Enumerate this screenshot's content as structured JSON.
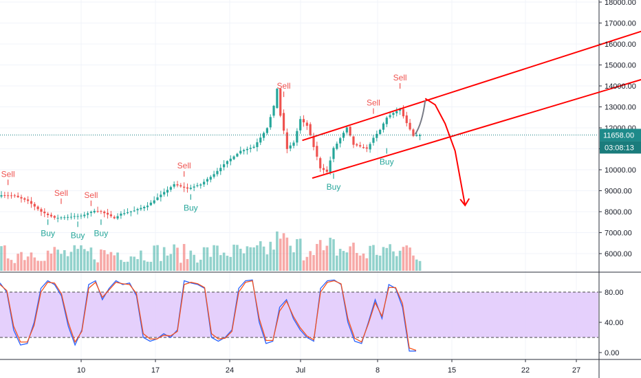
{
  "chart_data": [
    {
      "type": "candlestick",
      "ylim": [
        5200,
        18000
      ],
      "y_ticks": [
        6000,
        7000,
        8000,
        9000,
        10000,
        11000,
        12000,
        13000,
        14000,
        15000,
        16000,
        17000,
        18000
      ],
      "y_tick_labels": [
        "6000.00",
        "7000.00",
        "8000.00",
        "9000.00",
        "10000.00",
        "11000.00",
        "12000.00",
        "13000.00",
        "14000.00",
        "15000.00",
        "16000.00",
        "17000.00",
        "18000.00"
      ],
      "x_ticks": [
        "10",
        "17",
        "24",
        "Jul",
        "8",
        "15",
        "22",
        "27"
      ],
      "current_price": 11658.0,
      "current_price_label": "11658.00",
      "countdown_label": "03:08:13",
      "close_path": [
        [
          0,
          8800
        ],
        [
          4,
          8750
        ],
        [
          8,
          8500
        ],
        [
          12,
          8000
        ],
        [
          16,
          7700
        ],
        [
          20,
          7750
        ],
        [
          24,
          7800
        ],
        [
          28,
          8050
        ],
        [
          30,
          8000
        ],
        [
          34,
          7700
        ],
        [
          36,
          7900
        ],
        [
          40,
          8050
        ],
        [
          44,
          8300
        ],
        [
          48,
          8800
        ],
        [
          52,
          9300
        ],
        [
          56,
          9100
        ],
        [
          60,
          9300
        ],
        [
          64,
          9800
        ],
        [
          68,
          10400
        ],
        [
          72,
          10900
        ],
        [
          76,
          11100
        ],
        [
          80,
          12000
        ],
        [
          82,
          13000
        ],
        [
          83,
          13900
        ],
        [
          84,
          12600
        ],
        [
          86,
          11000
        ],
        [
          88,
          11300
        ],
        [
          90,
          12400
        ],
        [
          92,
          12100
        ],
        [
          94,
          11100
        ],
        [
          96,
          10100
        ],
        [
          98,
          9900
        ],
        [
          100,
          11000
        ],
        [
          102,
          11500
        ],
        [
          104,
          12000
        ],
        [
          106,
          11200
        ],
        [
          108,
          11100
        ],
        [
          110,
          11000
        ],
        [
          112,
          11500
        ],
        [
          114,
          11900
        ],
        [
          116,
          12500
        ],
        [
          118,
          12700
        ],
        [
          120,
          12900
        ],
        [
          122,
          12200
        ],
        [
          124,
          11600
        ],
        [
          126,
          11658
        ]
      ],
      "signals": [
        {
          "type": "Sell",
          "label": "Sell",
          "x": 2,
          "price": 9400
        },
        {
          "type": "Sell",
          "label": "Sell",
          "x": 18,
          "price": 8500
        },
        {
          "type": "Sell",
          "label": "Sell",
          "x": 27,
          "price": 8400
        },
        {
          "type": "Sell",
          "label": "Sell",
          "x": 55,
          "price": 9800
        },
        {
          "type": "Sell",
          "label": "Sell",
          "x": 85,
          "price": 13600
        },
        {
          "type": "Sell",
          "label": "Sell",
          "x": 112,
          "price": 12800
        },
        {
          "type": "Sell",
          "label": "Sell",
          "x": 120,
          "price": 14000
        },
        {
          "type": "Buy",
          "label": "Buy",
          "x": 14,
          "price": 7500
        },
        {
          "type": "Buy",
          "label": "Buy",
          "x": 23,
          "price": 7400
        },
        {
          "type": "Buy",
          "label": "Buy",
          "x": 30,
          "price": 7500
        },
        {
          "type": "Buy",
          "label": "Buy",
          "x": 57,
          "price": 8700
        },
        {
          "type": "Buy",
          "label": "Buy",
          "x": 100,
          "price": 9700
        },
        {
          "type": "Buy",
          "label": "Buy",
          "x": 116,
          "price": 10900
        }
      ],
      "channel": {
        "upper": [
          [
            91,
            11400
          ],
          [
            193,
            16600
          ]
        ],
        "lower": [
          [
            94,
            9600
          ],
          [
            193,
            14300
          ]
        ]
      },
      "projection": {
        "grey": [
          [
            125,
            11700
          ],
          [
            128,
            13300
          ]
        ],
        "red": [
          [
            128,
            13400
          ],
          [
            131,
            13100
          ],
          [
            134,
            12200
          ],
          [
            137,
            10900
          ],
          [
            140,
            8300
          ]
        ]
      },
      "colors": {
        "up": "#26a69a",
        "down": "#ef5350",
        "sell": "#ef5350",
        "buy": "#26a69a",
        "channel": "#ff0000",
        "projection": "#ff0000",
        "projection_grey": "#787b86",
        "price_line": "#0f7b7f",
        "price_tag": "#1e8a8a",
        "countdown_tag": "#1a7c7c"
      }
    },
    {
      "type": "line",
      "name": "stochastic",
      "ylim": [
        -5,
        105
      ],
      "y_ticks": [
        0,
        40,
        80
      ],
      "y_tick_labels": [
        "0.00",
        "40.00",
        "80.00"
      ],
      "band": [
        20,
        80
      ],
      "series": [
        {
          "values": [
            92,
            80,
            30,
            10,
            12,
            40,
            85,
            95,
            90,
            75,
            35,
            10,
            30,
            90,
            95,
            70,
            85,
            95,
            90,
            92,
            75,
            20,
            15,
            18,
            25,
            20,
            30,
            95,
            92,
            90,
            85,
            20,
            15,
            20,
            30,
            85,
            95,
            96,
            40,
            12,
            15,
            60,
            70,
            45,
            30,
            20,
            15,
            85,
            95,
            96,
            90,
            40,
            15,
            12,
            40,
            70,
            45,
            90,
            85,
            60,
            2,
            2
          ]
        },
        {
          "values": [
            90,
            82,
            35,
            14,
            14,
            36,
            80,
            93,
            92,
            78,
            40,
            14,
            28,
            85,
            93,
            73,
            83,
            93,
            91,
            90,
            78,
            25,
            18,
            18,
            23,
            22,
            28,
            90,
            93,
            91,
            86,
            25,
            18,
            19,
            28,
            80,
            93,
            95,
            45,
            16,
            16,
            55,
            68,
            48,
            33,
            22,
            17,
            80,
            93,
            95,
            91,
            45,
            19,
            14,
            38,
            66,
            48,
            86,
            86,
            65,
            6,
            3
          ]
        }
      ],
      "colors": {
        "k": "#2962ff",
        "d": "#f4511e",
        "band_fill": "#e1c8fb",
        "band_edge": "#444444"
      }
    }
  ]
}
